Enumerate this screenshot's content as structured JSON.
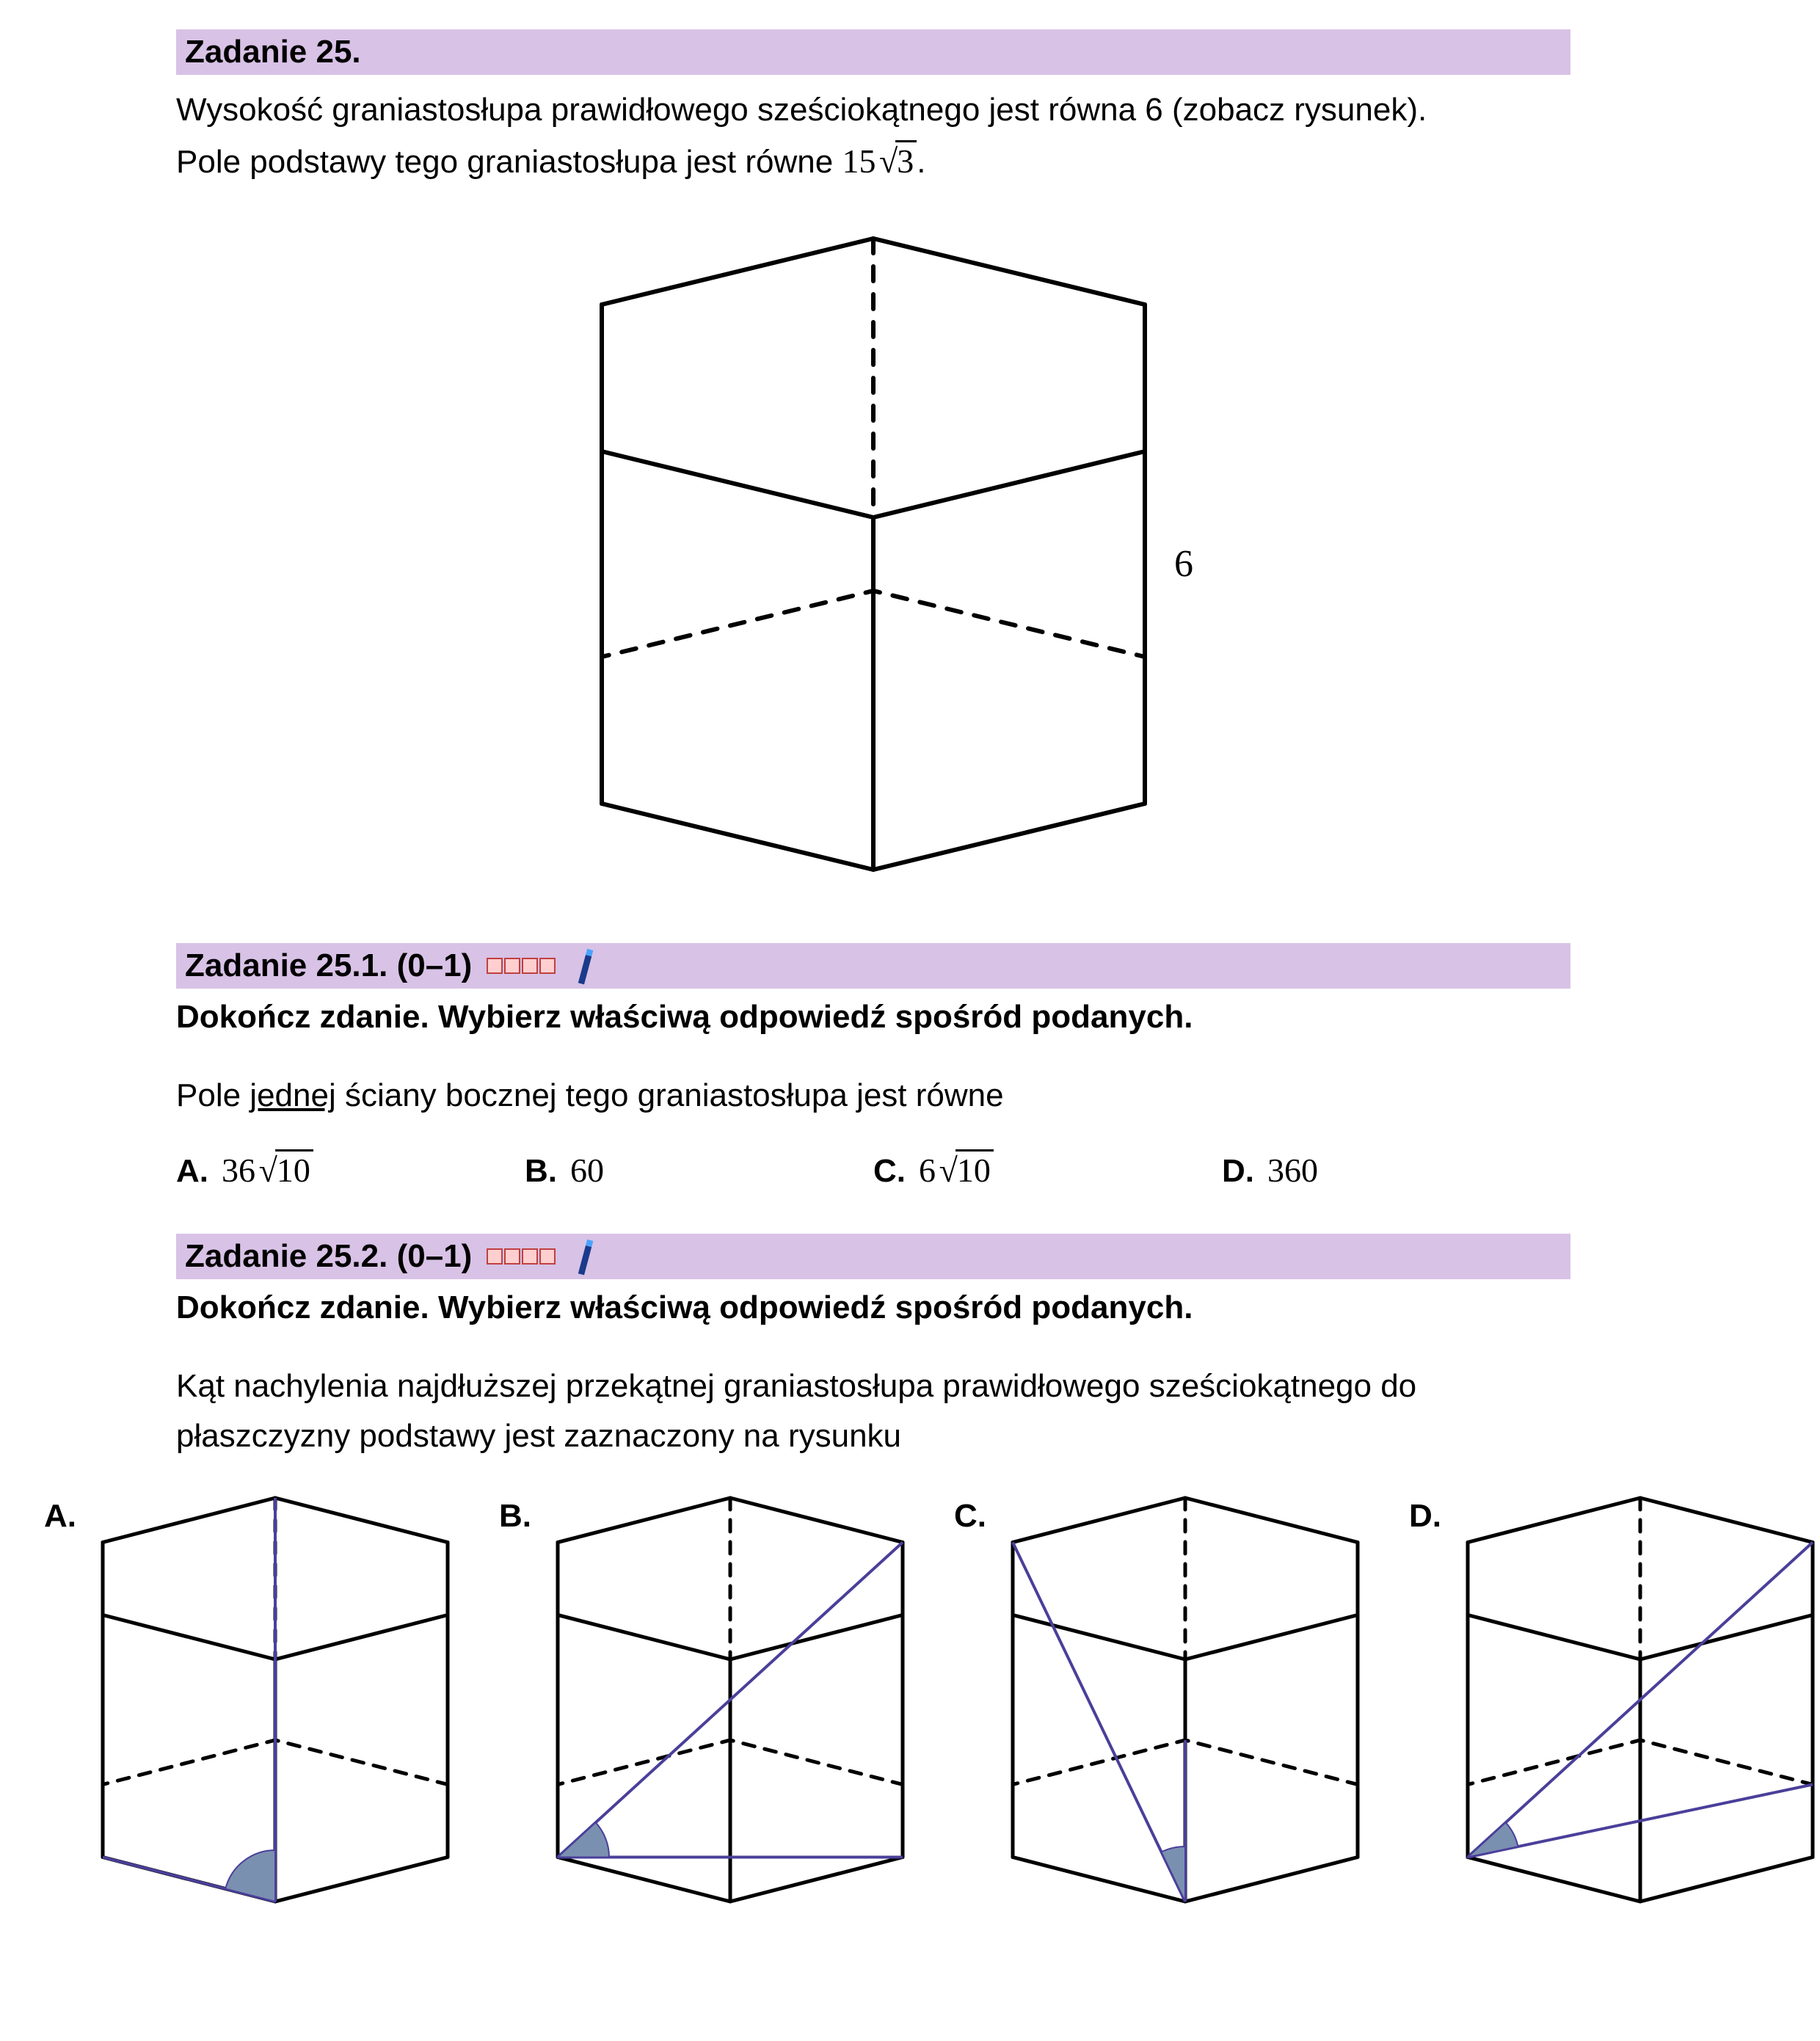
{
  "colors": {
    "header_bg": "#d8c2e6",
    "text": "#000000",
    "diagonal": "#4a3f9a",
    "angle_fill": "#7a90b0",
    "square_border": "#c04040",
    "square_fill": "#ffcfcf",
    "pen": "#1a3a8a"
  },
  "task25": {
    "title": "Zadanie 25.",
    "text_line1": "Wysokość graniastosłupa prawidłowego sześciokątnego jest równa  6  (zobacz rysunek).",
    "text_line2_pre": "Pole podstawy tego graniastosłupa jest równe  ",
    "text_line2_math_coeff": "15",
    "text_line2_math_rad": "3",
    "text_line2_post": "."
  },
  "main_prism": {
    "height_label": "6",
    "stroke_width": 6,
    "dash": "20,18"
  },
  "task25_1": {
    "title": "Zadanie 25.1. (0–1)",
    "instruction": "Dokończ zdanie. Wybierz właściwą odpowiedź spośród podanych.",
    "question_pre": "Pole ",
    "question_underlined": "jednej",
    "question_post": " ściany bocznej tego graniastosłupa jest równe",
    "options": {
      "A": {
        "coeff": "36",
        "rad": "10"
      },
      "B": {
        "plain": "60"
      },
      "C": {
        "coeff": "6",
        "rad": "10"
      },
      "D": {
        "plain": "360"
      }
    },
    "labels": {
      "A": "A.",
      "B": "B.",
      "C": "C.",
      "D": "D."
    }
  },
  "task25_2": {
    "title": "Zadanie 25.2. (0–1)",
    "instruction": "Dokończ zdanie. Wybierz właściwą odpowiedź spośród podanych.",
    "question_line1": "Kąt nachylenia najdłuższej przekątnej graniastosłupa prawidłowego sześciokątnego do",
    "question_line2": "płaszczyzny podstawy jest zaznaczony na rysunku",
    "labels": {
      "A": "A.",
      "B": "B.",
      "C": "C.",
      "D": "D."
    }
  },
  "small_prism": {
    "stroke_width": 5,
    "dash": "16,14",
    "diag_width": 4,
    "top_vertices_idx": {
      "TL": 5,
      "T": 0,
      "TR": 1,
      "BR": 2,
      "B": 3,
      "BL": 4
    },
    "bottom_vertices_idx": {
      "TL": 5,
      "T": 0,
      "TR": 1,
      "BR": 2,
      "B": 3,
      "BL": 4
    }
  }
}
